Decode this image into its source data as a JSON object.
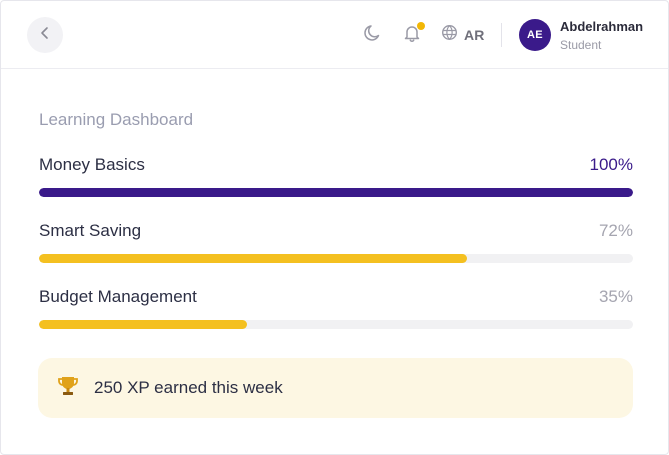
{
  "header": {
    "lang_label": "AR",
    "user": {
      "initials": "AE",
      "name": "Abdelrahman",
      "role": "Student"
    },
    "has_notification": true
  },
  "dashboard": {
    "title": "Learning Dashboard",
    "courses": [
      {
        "name": "Money Basics",
        "percent_label": "100%",
        "progress": 1.0,
        "color": "#3a1a8a"
      },
      {
        "name": "Smart Saving",
        "percent_label": "72%",
        "progress": 0.72,
        "color": "#f4c020"
      },
      {
        "name": "Budget Management",
        "percent_label": "35%",
        "progress": 0.35,
        "color": "#f4c020"
      }
    ],
    "xp_text": "250 XP earned this week"
  },
  "colors": {
    "brand": "#3a1a8a",
    "accent": "#f4c020",
    "xp_card_bg": "#fdf7e3"
  },
  "icons": {
    "back": "chevron-left-icon",
    "moon": "moon-icon",
    "bell": "bell-icon",
    "globe": "globe-icon",
    "trophy": "trophy-icon"
  }
}
